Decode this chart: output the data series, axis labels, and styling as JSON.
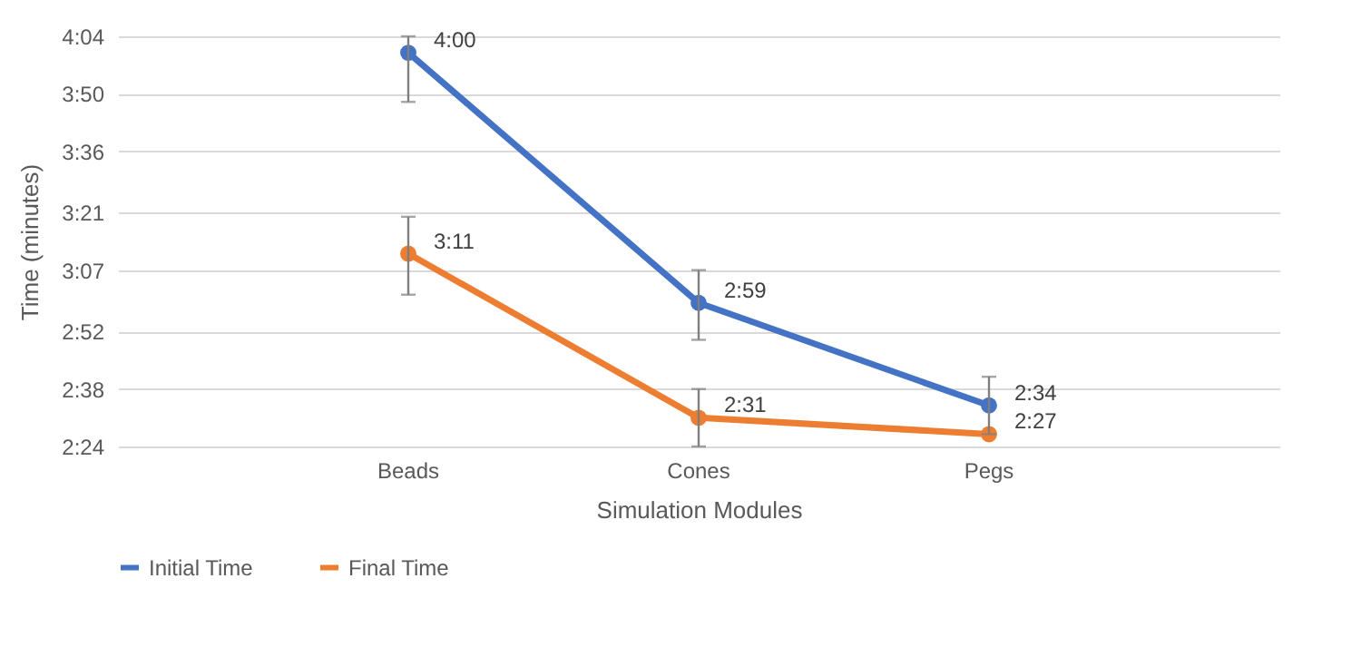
{
  "chart_data": {
    "type": "line",
    "xlabel": "Simulation Modules",
    "ylabel": "Time (minutes)",
    "categories": [
      "Beads",
      "Cones",
      "Pegs"
    ],
    "series": [
      {
        "name": "Initial Time",
        "color": "#4472c4",
        "values": [
          240,
          179,
          154
        ],
        "value_labels": [
          "4:00",
          "2:59",
          "2:34"
        ],
        "errors": [
          [
            228,
            244
          ],
          [
            170,
            187
          ],
          [
            147,
            161
          ]
        ]
      },
      {
        "name": "Final Time",
        "color": "#ed7d31",
        "values": [
          191,
          151,
          147
        ],
        "value_labels": [
          "3:11",
          "2:31",
          "2:27"
        ],
        "errors": [
          [
            181,
            200
          ],
          [
            144,
            158
          ],
          null
        ]
      }
    ],
    "ylim": [
      144,
      244
    ],
    "yticks": [
      {
        "value": 144,
        "label": "2:24"
      },
      {
        "value": 158,
        "label": "2:38"
      },
      {
        "value": 172,
        "label": "2:52"
      },
      {
        "value": 187,
        "label": "3:07"
      },
      {
        "value": 201,
        "label": "3:21"
      },
      {
        "value": 216,
        "label": "3:36"
      },
      {
        "value": 230,
        "label": "3:50"
      },
      {
        "value": 244,
        "label": "4:04"
      }
    ],
    "grid": "y",
    "legend": "bottom",
    "marker": "circle",
    "line_style": "solid"
  }
}
